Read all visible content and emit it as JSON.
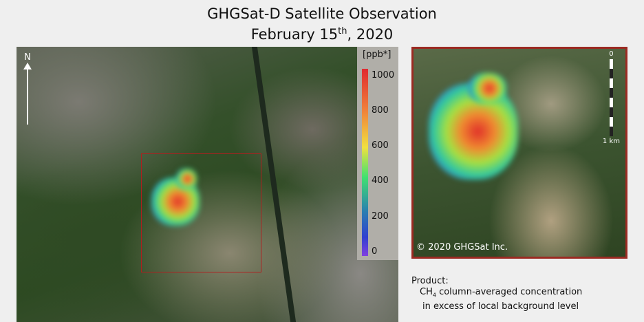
{
  "title": {
    "line1": "GHGSat-D Satellite Observation",
    "date_prefix": "February 15",
    "date_sup": "th",
    "date_suffix": ", 2020"
  },
  "main_map": {
    "north_label": "N",
    "colorbar": {
      "unit": "[ppb*]",
      "ticks": [
        "1000",
        "800",
        "600",
        "400",
        "200",
        "0"
      ],
      "range": [
        0,
        1000
      ],
      "colormap": "rainbow (purple-blue-green-yellow-red)"
    },
    "highlight_box_color": "#b01e1e"
  },
  "inset": {
    "scale_top": "0",
    "scale_bottom": "1 km",
    "copyright": "© 2020 GHGSat Inc.",
    "border_color": "#9b2a22"
  },
  "product": {
    "label": "Product:",
    "line1_prefix": "CH",
    "line1_sub": "4",
    "line1_rest": " column-averaged concentration",
    "line2": "in excess of local background level"
  }
}
